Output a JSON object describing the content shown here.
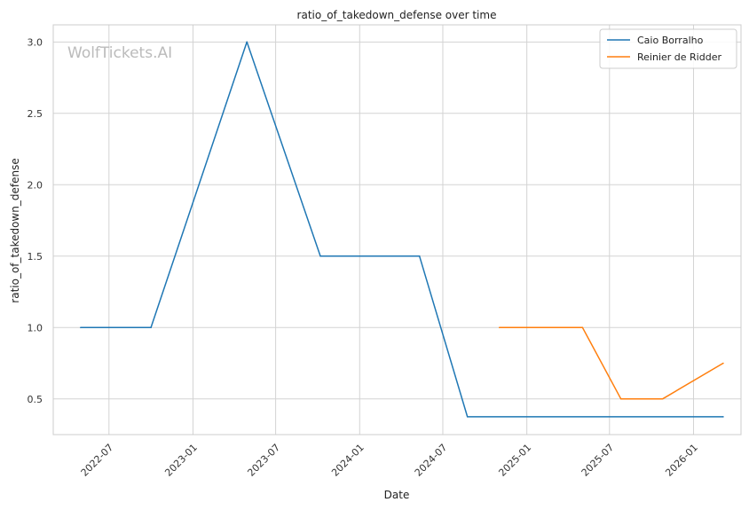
{
  "chart_data": {
    "type": "line",
    "title": "ratio_of_takedown_defense over time",
    "xlabel": "Date",
    "ylabel": "ratio_of_takedown_defense",
    "watermark": "WolfTickets.AI",
    "xlim": [
      "2022-03-01",
      "2026-04-15"
    ],
    "ylim": [
      0.25,
      3.12
    ],
    "x_ticks": [
      "2022-07-01",
      "2023-01-01",
      "2023-07-01",
      "2024-01-01",
      "2024-07-01",
      "2025-01-01",
      "2025-07-01",
      "2026-01-01"
    ],
    "x_tick_labels": [
      "2022-07",
      "2023-01",
      "2023-07",
      "2024-01",
      "2024-07",
      "2025-01",
      "2025-07",
      "2026-01"
    ],
    "y_ticks": [
      0.5,
      1.0,
      1.5,
      2.0,
      2.5,
      3.0
    ],
    "y_tick_labels": [
      "0.5",
      "1.0",
      "1.5",
      "2.0",
      "2.5",
      "3.0"
    ],
    "grid": true,
    "legend_position": "top-right",
    "series": [
      {
        "name": "Caio Borralho",
        "color": "#1f77b4",
        "points": [
          [
            "2022-04-30",
            1.0
          ],
          [
            "2022-10-01",
            1.0
          ],
          [
            "2023-04-29",
            3.0
          ],
          [
            "2023-10-07",
            1.5
          ],
          [
            "2024-05-11",
            1.5
          ],
          [
            "2024-08-24",
            0.375
          ],
          [
            "2026-03-07",
            0.375
          ]
        ]
      },
      {
        "name": "Reinier de Ridder",
        "color": "#ff7f0e",
        "points": [
          [
            "2024-11-02",
            1.0
          ],
          [
            "2025-05-03",
            1.0
          ],
          [
            "2025-07-26",
            0.5
          ],
          [
            "2025-10-25",
            0.5
          ],
          [
            "2026-03-07",
            0.75
          ]
        ]
      }
    ]
  }
}
